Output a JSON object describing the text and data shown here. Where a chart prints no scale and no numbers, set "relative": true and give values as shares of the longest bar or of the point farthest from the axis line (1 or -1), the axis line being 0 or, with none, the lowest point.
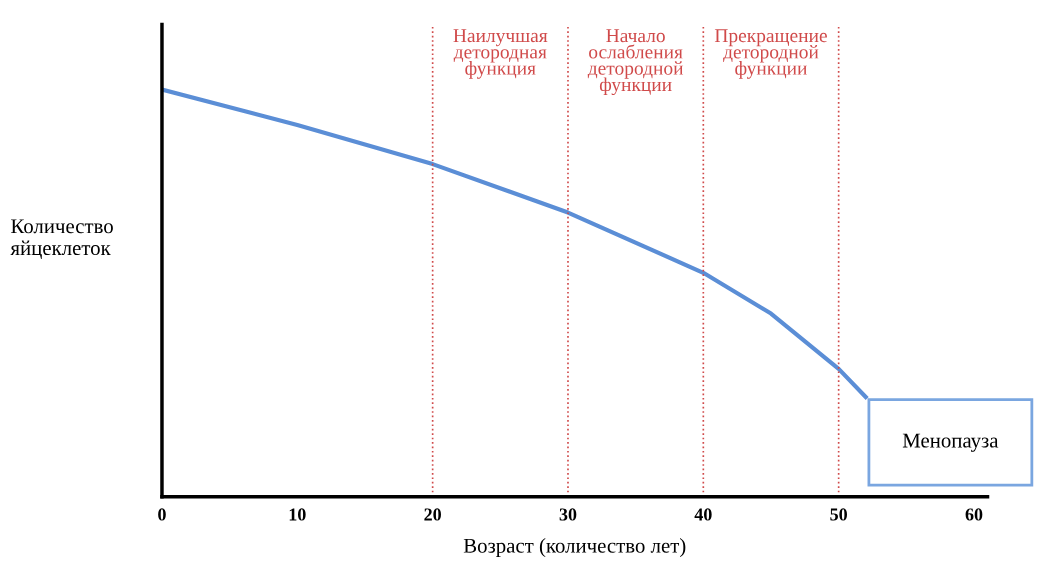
{
  "chart_data": {
    "type": "line",
    "relative": true,
    "xlabel": "Возраст (количество лет)",
    "ylabel": "Количество\nяйцеклеток",
    "x": [
      0,
      10,
      20,
      30,
      40,
      45,
      50,
      52
    ],
    "series": [
      {
        "color": "#5b8ed6",
        "values": [
          1,
          0.913,
          0.817,
          0.698,
          0.55,
          0.45,
          0.314,
          0.245
        ]
      }
    ],
    "xlim": [
      0,
      61
    ],
    "xticks": [
      0,
      10,
      20,
      30,
      40,
      50,
      60
    ],
    "ref_lines": [
      {
        "axis": "x",
        "value": 20,
        "label": "Наилучшая\nдетородная\nфункция",
        "color": "#d04a4a",
        "line_style": "dotted"
      },
      {
        "axis": "x",
        "value": 30,
        "label": "Начало\nослабления\nдетородной\nфункции",
        "color": "#d04a4a",
        "line_style": "dotted"
      },
      {
        "axis": "x",
        "value": 40,
        "label": "Прекращение\nдетородной\nфункции",
        "color": "#d04a4a",
        "line_style": "dotted"
      },
      {
        "axis": "x",
        "value": 50,
        "color": "#d04a4a",
        "line_style": "dotted"
      }
    ],
    "annotations": [
      "Менопауза"
    ],
    "grid": false,
    "legend": false,
    "marker": "none",
    "line_style": "solid"
  }
}
